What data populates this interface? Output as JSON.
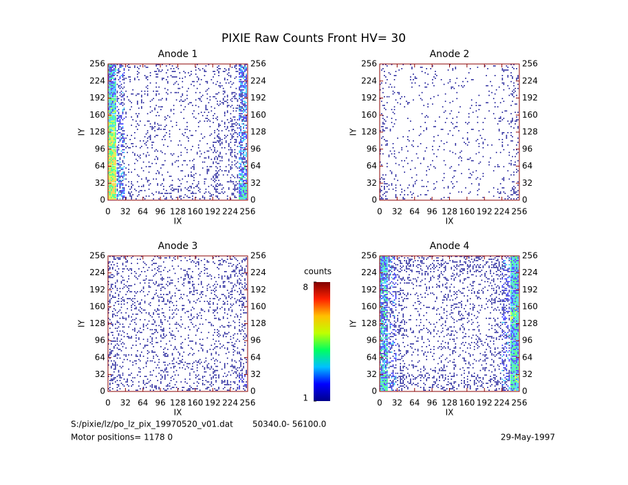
{
  "page": {
    "title": "PIXIE Raw Counts Front HV= 30",
    "colorbar": {
      "label": "counts",
      "clim": [
        1,
        8
      ],
      "ticks": [
        1,
        8
      ],
      "colors": [
        "#00008b",
        "#0000ff",
        "#00c0ff",
        "#00ff60",
        "#c0ff00",
        "#ffc000",
        "#ff2000",
        "#800000"
      ]
    },
    "footer": {
      "file": "S:/pixie/lz/po_lz_pix_19970520_v01.dat",
      "range": "50340.0- 56100.0",
      "motor": "Motor positions= 1178 0",
      "date": "29-May-1997"
    }
  },
  "chart_data": [
    {
      "type": "heatmap",
      "title": "Anode 1",
      "xlabel": "IX",
      "ylabel": "IY",
      "xlim": [
        0,
        256
      ],
      "ylim": [
        0,
        256
      ],
      "xticks": [
        0,
        32,
        64,
        96,
        128,
        160,
        192,
        224,
        256
      ],
      "yticks": [
        0,
        32,
        64,
        96,
        128,
        160,
        192,
        224,
        256
      ],
      "z": [
        [
          5,
          2,
          0.8,
          0.6,
          0.6,
          0.6,
          0.6,
          0.6,
          0.6,
          0.6,
          0.6,
          0.7,
          0.9,
          0.7,
          1,
          3
        ],
        [
          5,
          1.8,
          0.3,
          0.3,
          0.3,
          0.3,
          0.3,
          0.3,
          0.3,
          0.3,
          0.3,
          0.4,
          0.9,
          0.5,
          0.8,
          2.5
        ],
        [
          5,
          1.6,
          0.4,
          0.3,
          0.3,
          0.3,
          0.3,
          0.3,
          0.3,
          0.3,
          0.3,
          0.4,
          0.8,
          0.4,
          0.8,
          2
        ],
        [
          4.5,
          1.5,
          0.3,
          0.3,
          0.3,
          0.3,
          0.3,
          0.3,
          0.3,
          0.3,
          0.3,
          0.4,
          0.7,
          0.4,
          0.8,
          2
        ],
        [
          4,
          1.4,
          0.3,
          0.3,
          0.3,
          0.3,
          0.3,
          0.3,
          0.3,
          0.3,
          0.3,
          0.4,
          0.7,
          0.4,
          0.7,
          2
        ],
        [
          3.5,
          1.3,
          0.3,
          0.3,
          0.3,
          0.3,
          0.3,
          0.3,
          0.3,
          0.3,
          0.3,
          0.4,
          0.6,
          0.4,
          0.7,
          2
        ],
        [
          3,
          1.2,
          0.4,
          0.3,
          0.3,
          0.3,
          0.3,
          0.3,
          0.3,
          0.3,
          0.3,
          0.4,
          0.5,
          0.4,
          0.6,
          2
        ],
        [
          2.5,
          1.2,
          0.5,
          0.4,
          0.4,
          0.4,
          0.4,
          0.4,
          0.4,
          0.4,
          0.4,
          0.4,
          0.5,
          0.4,
          0.6,
          2
        ]
      ]
    },
    {
      "type": "heatmap",
      "title": "Anode 2",
      "xlabel": "IX",
      "ylabel": "IY",
      "xlim": [
        0,
        256
      ],
      "ylim": [
        0,
        256
      ],
      "xticks": [
        0,
        32,
        64,
        96,
        128,
        160,
        192,
        224,
        256
      ],
      "yticks": [
        0,
        32,
        64,
        96,
        128,
        160,
        192,
        224,
        256
      ],
      "z": [
        [
          0.8,
          0.4,
          0.3,
          0.2,
          0.2,
          0.2,
          0.2,
          0.2,
          0.2,
          0.2,
          0.2,
          0.2,
          0.2,
          0.3,
          0.4,
          0.8
        ],
        [
          0.5,
          0.3,
          0.15,
          0.15,
          0.15,
          0.15,
          0.15,
          0.15,
          0.15,
          0.15,
          0.2,
          0.2,
          0.15,
          0.15,
          0.3,
          0.5
        ],
        [
          0.4,
          0.2,
          0.15,
          0.15,
          0.15,
          0.15,
          0.15,
          0.15,
          0.15,
          0.15,
          0.2,
          0.25,
          0.15,
          0.15,
          0.2,
          0.4
        ],
        [
          0.4,
          0.2,
          0.15,
          0.15,
          0.15,
          0.15,
          0.15,
          0.15,
          0.15,
          0.15,
          0.15,
          0.25,
          0.15,
          0.15,
          0.2,
          0.4
        ],
        [
          0.4,
          0.2,
          0.15,
          0.15,
          0.15,
          0.15,
          0.15,
          0.15,
          0.15,
          0.15,
          0.2,
          0.2,
          0.15,
          0.15,
          0.2,
          0.4
        ],
        [
          0.35,
          0.2,
          0.15,
          0.15,
          0.15,
          0.15,
          0.15,
          0.15,
          0.15,
          0.15,
          0.2,
          0.2,
          0.15,
          0.15,
          0.2,
          0.4
        ],
        [
          0.35,
          0.2,
          0.15,
          0.15,
          0.15,
          0.15,
          0.15,
          0.15,
          0.15,
          0.15,
          0.15,
          0.15,
          0.15,
          0.15,
          0.3,
          0.6
        ],
        [
          0.35,
          0.2,
          0.2,
          0.2,
          0.2,
          0.2,
          0.2,
          0.2,
          0.2,
          0.2,
          0.2,
          0.2,
          0.2,
          0.2,
          0.4,
          0.7
        ]
      ]
    },
    {
      "type": "heatmap",
      "title": "Anode 3",
      "xlabel": "IX",
      "ylabel": "IY",
      "xlim": [
        0,
        256
      ],
      "ylim": [
        0,
        256
      ],
      "xticks": [
        0,
        32,
        64,
        96,
        128,
        160,
        192,
        224,
        256
      ],
      "yticks": [
        0,
        32,
        64,
        96,
        128,
        160,
        192,
        224,
        256
      ],
      "z": [
        [
          0.9,
          0.7,
          0.6,
          0.6,
          0.6,
          0.6,
          0.6,
          0.6,
          0.6,
          0.6,
          0.6,
          0.6,
          0.6,
          0.6,
          0.8,
          1.1
        ],
        [
          0.8,
          0.6,
          0.5,
          0.5,
          0.5,
          0.5,
          0.5,
          0.5,
          0.5,
          0.5,
          0.5,
          0.5,
          0.5,
          0.5,
          0.7,
          0.9
        ],
        [
          0.7,
          0.6,
          0.5,
          0.5,
          0.5,
          0.5,
          0.5,
          0.5,
          0.5,
          0.5,
          0.5,
          0.5,
          0.5,
          0.5,
          0.6,
          0.8
        ],
        [
          0.7,
          0.6,
          0.5,
          0.5,
          0.5,
          0.5,
          0.5,
          0.5,
          0.5,
          0.5,
          0.5,
          0.5,
          0.5,
          0.5,
          0.6,
          0.8
        ],
        [
          0.7,
          0.6,
          0.5,
          0.5,
          0.5,
          0.5,
          0.5,
          0.5,
          0.5,
          0.5,
          0.5,
          0.5,
          0.5,
          0.5,
          0.6,
          0.8
        ],
        [
          0.7,
          0.6,
          0.5,
          0.5,
          0.5,
          0.5,
          0.5,
          0.5,
          0.5,
          0.5,
          0.5,
          0.5,
          0.5,
          0.5,
          0.6,
          0.8
        ],
        [
          0.7,
          0.6,
          0.5,
          0.5,
          0.5,
          0.5,
          0.5,
          0.5,
          0.5,
          0.5,
          0.5,
          0.5,
          0.5,
          0.5,
          0.7,
          0.9
        ],
        [
          0.8,
          0.6,
          0.5,
          0.5,
          0.5,
          0.5,
          0.5,
          0.5,
          0.5,
          0.5,
          0.5,
          0.5,
          0.5,
          0.5,
          0.7,
          1
        ]
      ]
    },
    {
      "type": "heatmap",
      "title": "Anode 4",
      "xlabel": "IX",
      "ylabel": "IY",
      "xlim": [
        0,
        256
      ],
      "ylim": [
        0,
        256
      ],
      "xticks": [
        0,
        32,
        64,
        96,
        128,
        160,
        192,
        224,
        256
      ],
      "yticks": [
        0,
        32,
        64,
        96,
        128,
        160,
        192,
        224,
        256
      ],
      "z": [
        [
          3,
          1.5,
          0.8,
          0.7,
          0.7,
          0.7,
          0.7,
          0.7,
          0.7,
          0.7,
          0.7,
          0.7,
          0.7,
          0.8,
          1.5,
          3.5
        ],
        [
          2.5,
          1.2,
          0.6,
          0.5,
          0.5,
          0.5,
          0.5,
          0.5,
          0.5,
          0.5,
          0.5,
          0.5,
          0.5,
          0.6,
          1.2,
          3
        ],
        [
          2.5,
          1.2,
          0.6,
          0.5,
          0.5,
          0.5,
          0.5,
          0.5,
          0.5,
          0.5,
          0.5,
          0.5,
          0.5,
          0.6,
          1.2,
          3
        ],
        [
          2.5,
          1.2,
          0.6,
          0.5,
          0.5,
          0.5,
          0.5,
          0.5,
          0.5,
          0.5,
          0.5,
          0.5,
          0.5,
          0.6,
          1.3,
          3
        ],
        [
          2.5,
          1.2,
          0.6,
          0.5,
          0.5,
          0.5,
          0.5,
          0.5,
          0.5,
          0.5,
          0.5,
          0.5,
          0.5,
          0.6,
          1.3,
          3.5
        ],
        [
          2.5,
          1.2,
          0.6,
          0.5,
          0.5,
          0.5,
          0.5,
          0.5,
          0.5,
          0.5,
          0.5,
          0.5,
          0.5,
          0.6,
          1.2,
          3
        ],
        [
          2.5,
          1.2,
          0.6,
          0.5,
          0.5,
          0.5,
          0.5,
          0.5,
          0.5,
          0.5,
          0.5,
          0.5,
          0.5,
          0.6,
          1.2,
          3
        ],
        [
          3,
          1.5,
          1,
          0.9,
          0.9,
          0.9,
          0.9,
          0.9,
          0.9,
          0.9,
          0.9,
          0.9,
          0.9,
          1,
          1.5,
          3
        ]
      ]
    }
  ]
}
